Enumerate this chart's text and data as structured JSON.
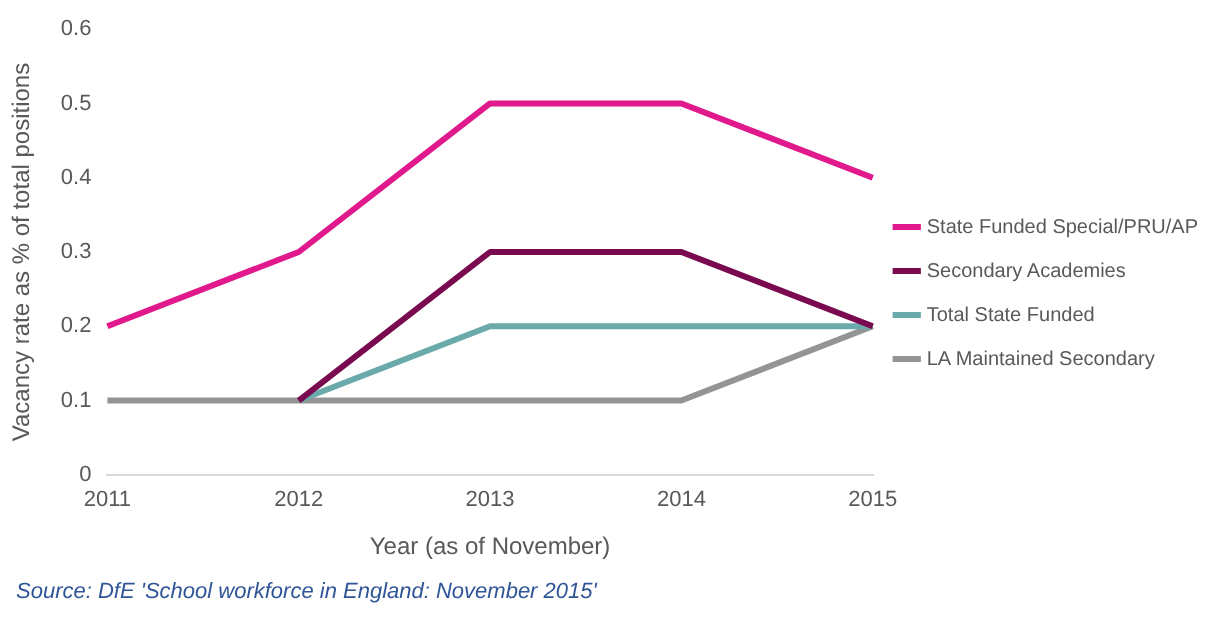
{
  "chart_data": {
    "type": "line",
    "xlabel": "Year (as of November)",
    "ylabel": "Vacancy rate as % of total positions",
    "categories": [
      "2011",
      "2012",
      "2013",
      "2014",
      "2015"
    ],
    "series": [
      {
        "name": "State Funded Special/PRU/AP",
        "color": "#e0198c",
        "values": [
          0.2,
          0.3,
          0.5,
          0.5,
          0.4
        ]
      },
      {
        "name": "Secondary Academies",
        "color": "#7a0a50",
        "values": [
          null,
          0.1,
          0.3,
          0.3,
          0.2
        ]
      },
      {
        "name": "Total State Funded",
        "color": "#6aaaaa",
        "values": [
          null,
          0.1,
          0.2,
          0.2,
          0.2
        ]
      },
      {
        "name": "LA Maintained Secondary",
        "color": "#949494",
        "values": [
          0.1,
          0.1,
          0.1,
          0.1,
          0.2
        ]
      }
    ],
    "ylim": [
      0,
      0.6
    ],
    "yticks": [
      0,
      0.1,
      0.2,
      0.3,
      0.4,
      0.5,
      0.6
    ],
    "grid": false,
    "legend": "right",
    "marker": "none",
    "line_style": "solid",
    "annotations": [
      "Source: DfE 'School workforce in England: November 2015'"
    ]
  }
}
